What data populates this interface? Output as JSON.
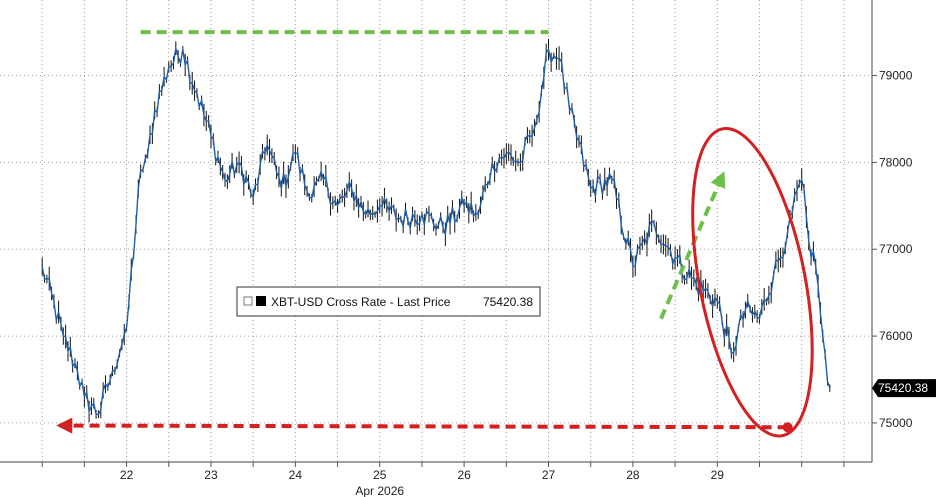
{
  "chart_data": {
    "type": "line",
    "series": [
      {
        "name": "XBT-USD Cross Rate - Last Price",
        "last_value": "75420.38",
        "color": "#1f5fa8",
        "x": [
          "2026-04-21 00:00",
          "2026-04-21 06:00",
          "2026-04-21 10:00",
          "2026-04-21 12:00",
          "2026-04-21 16:00",
          "2026-04-21 20:00",
          "2026-04-22 00:00",
          "2026-04-22 04:00",
          "2026-04-22 06:00",
          "2026-04-22 08:00",
          "2026-04-22 12:00",
          "2026-04-22 16:00",
          "2026-04-22 20:00",
          "2026-04-23 00:00",
          "2026-04-23 04:00",
          "2026-04-23 08:00",
          "2026-04-23 12:00",
          "2026-04-23 16:00",
          "2026-04-23 20:00",
          "2026-04-24 00:00",
          "2026-04-24 04:00",
          "2026-04-24 08:00",
          "2026-04-24 12:00",
          "2026-04-24 16:00",
          "2026-04-24 20:00",
          "2026-04-25 00:00",
          "2026-04-25 06:00",
          "2026-04-25 12:00",
          "2026-04-25 18:00",
          "2026-04-26 00:00",
          "2026-04-26 04:00",
          "2026-04-26 08:00",
          "2026-04-26 12:00",
          "2026-04-26 16:00",
          "2026-04-26 20:00",
          "2026-04-27 00:00",
          "2026-04-27 03:00",
          "2026-04-27 06:00",
          "2026-04-27 12:00",
          "2026-04-27 18:00",
          "2026-04-28 00:00",
          "2026-04-28 06:00",
          "2026-04-28 12:00",
          "2026-04-28 18:00",
          "2026-04-29 00:00",
          "2026-04-29 04:00",
          "2026-04-29 08:00",
          "2026-04-29 12:00",
          "2026-04-29 16:00",
          "2026-04-29 20:00",
          "2026-04-30 00:00",
          "2026-04-30 02:00",
          "2026-04-30 04:00",
          "2026-04-30 06:00",
          "2026-04-30 08:00"
        ],
        "y": [
          76800,
          76000,
          75600,
          75300,
          75100,
          75600,
          76100,
          77900,
          78100,
          78600,
          79100,
          79300,
          78800,
          78300,
          77800,
          78000,
          77600,
          78200,
          77700,
          78100,
          77600,
          77800,
          77500,
          77700,
          77400,
          77500,
          77350,
          77400,
          77250,
          77500,
          77400,
          78000,
          78100,
          78000,
          78400,
          79300,
          79200,
          78600,
          77700,
          77800,
          76800,
          77300,
          76900,
          76600,
          76400,
          75800,
          76300,
          76200,
          76700,
          77200,
          77800,
          77100,
          76800,
          76000,
          75400
        ]
      }
    ],
    "x_ticks": [
      {
        "x": "2026-04-22 00:00",
        "label": "22"
      },
      {
        "x": "2026-04-23 00:00",
        "label": "23"
      },
      {
        "x": "2026-04-24 00:00",
        "label": "24"
      },
      {
        "x": "2026-04-25 00:00",
        "label": "25"
      },
      {
        "x": "2026-04-26 00:00",
        "label": "26"
      },
      {
        "x": "2026-04-27 00:00",
        "label": "27"
      },
      {
        "x": "2026-04-28 00:00",
        "label": "28"
      },
      {
        "x": "2026-04-29 00:00",
        "label": "29"
      }
    ],
    "x_sublabel": {
      "x": "2026-04-25 00:00",
      "label": "Apr 2026"
    },
    "y_ticks": [
      75000,
      76000,
      77000,
      78000,
      79000
    ],
    "y_tick_labels": [
      "75000",
      "76000",
      "77000",
      "78000",
      "79000"
    ],
    "xlim": [
      "2026-04-20 12:00",
      "2026-04-30 20:00"
    ],
    "ylim": [
      74550,
      79870
    ],
    "grid": "vertical and horizontal dotted",
    "y_axis_side": "right",
    "legend": {
      "label": "XBT-USD Cross Rate - Last Price",
      "value": "75420.38",
      "placement": "center-left"
    },
    "last_price_flag": {
      "label": "75420.38",
      "color": "#000000"
    },
    "annotations": [
      {
        "type": "dashed-line",
        "color": "#6cc04a",
        "x1": "2026-04-22 04:00",
        "y1": 79500,
        "x2": "2026-04-27 00:00",
        "y2": 79500
      },
      {
        "type": "dashed-arrow",
        "color": "#d42020",
        "x1": "2026-04-29 20:00",
        "y1": 74950,
        "x2": "2026-04-21 04:00",
        "y2": 74970
      },
      {
        "type": "dashed-arrow",
        "color": "#6cc04a",
        "x1": "2026-04-28 08:00",
        "y1": 76200,
        "x2": "2026-04-29 02:00",
        "y2": 77900
      },
      {
        "type": "ellipse",
        "color": "#d42020",
        "cx": "2026-04-29 10:00",
        "cy": 76620,
        "rx_hours": 15,
        "ry": 1800,
        "rotation_deg": -11
      },
      {
        "type": "dot",
        "color": "#d42020",
        "x": "2026-04-29 20:00",
        "y": 74950
      }
    ]
  }
}
